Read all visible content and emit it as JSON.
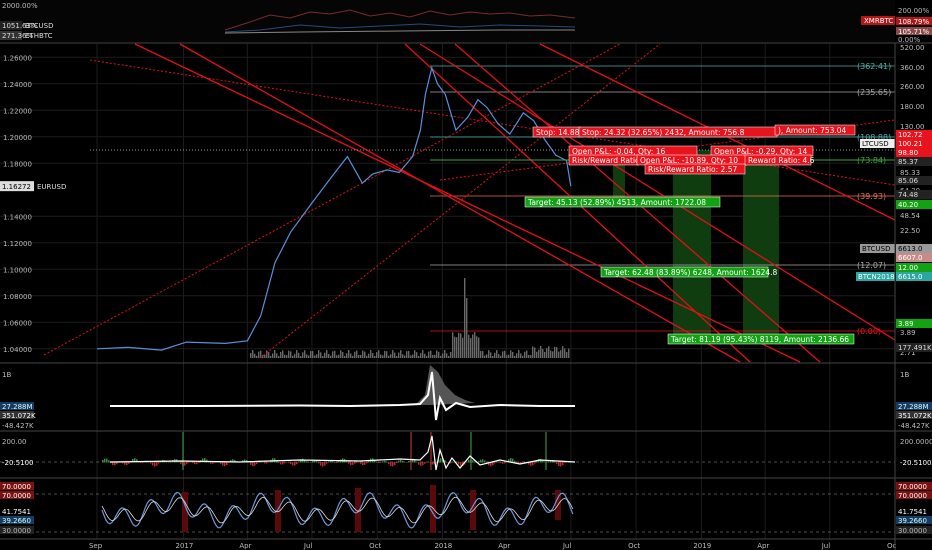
{
  "colors": {
    "background": "#000000",
    "price_line": "#5b8fd9",
    "trend_red": "#e0101a",
    "fib_line": "#9e9e9e",
    "stop_box": "#e8131c",
    "target_box": "#13a214",
    "target_zone": "#0f3d0f",
    "obv_line": "#ffffff",
    "rsi_line": "#6f97d6"
  },
  "top_strip": {
    "left_ticks": [
      "2000.00%",
      "1051.63%",
      "271.36%"
    ],
    "legend": [
      "BTCUSD",
      "ETHBTC"
    ],
    "right_label": "XMRBTC",
    "right_ticks": [
      "200.00%",
      "108.79%",
      "105.71%",
      "0.00%"
    ]
  },
  "chart_data": {
    "type": "line",
    "series": [
      {
        "name": "EURUSD",
        "x": [
          "2016-09-01",
          "2016-10-15",
          "2016-12-01",
          "2017-01-05",
          "2017-03-01",
          "2017-04-01",
          "2017-04-20",
          "2017-05-10",
          "2017-06-01",
          "2017-07-01",
          "2017-08-01",
          "2017-08-20",
          "2017-09-10",
          "2017-09-25",
          "2017-10-15",
          "2017-11-01",
          "2017-11-20",
          "2017-12-01",
          "2017-12-08",
          "2017-12-17",
          "2017-12-25",
          "2018-01-05",
          "2018-01-20",
          "2018-02-06",
          "2018-02-20",
          "2018-03-05",
          "2018-03-20",
          "2018-04-06",
          "2018-04-25",
          "2018-05-10",
          "2018-05-25",
          "2018-06-10",
          "2018-06-25",
          "2018-07-01"
        ],
        "values": [
          1.04,
          1.041,
          1.039,
          1.045,
          1.044,
          1.046,
          1.065,
          1.105,
          1.128,
          1.15,
          1.172,
          1.185,
          1.165,
          1.172,
          1.175,
          1.173,
          1.185,
          1.205,
          1.232,
          1.252,
          1.24,
          1.232,
          1.205,
          1.215,
          1.228,
          1.222,
          1.21,
          1.202,
          1.218,
          1.212,
          1.198,
          1.186,
          1.182,
          1.1627
        ]
      }
    ],
    "y_axis_ticks": [
      "1.26000",
      "1.24000",
      "1.22000",
      "1.20000",
      "1.18000",
      "1.16272",
      "1.14000",
      "1.12000",
      "1.10000",
      "1.08000",
      "1.06000",
      "1.04000"
    ],
    "ylim": [
      1.03,
      1.27
    ],
    "current_value_label": "1.16272",
    "series_tag": "EURUSD",
    "x_axis_labels": [
      "Sep",
      "2017",
      "Apr",
      "Jul",
      "Oct",
      "2018",
      "Apr",
      "Jul",
      "Oct",
      "2019",
      "Apr",
      "Jul",
      "Oc"
    ],
    "right_axis_ticks": [
      "520.00",
      "360.00",
      "260.00",
      "180.00",
      "130.00",
      "85.33",
      "64.30",
      "48.54",
      "40.20",
      "22.50",
      "16.50",
      "3.89",
      "2.71"
    ],
    "right_axis_tags": [
      {
        "text": "102.72",
        "color": "red"
      },
      {
        "text": "100.21",
        "color": "red"
      },
      {
        "text": "98.80",
        "color": "red"
      },
      {
        "text": "LTCUSD",
        "color": "white"
      },
      {
        "text": "85.37",
        "color": "dark"
      },
      {
        "text": "85.06",
        "color": "dark"
      },
      {
        "text": "74.48",
        "color": "dark"
      },
      {
        "text": "40.20",
        "color": "green"
      },
      {
        "text": "BTCUSD",
        "color": "gray"
      },
      {
        "text": "6613.0",
        "color": "gray"
      },
      {
        "text": "6607.0",
        "color": "pink"
      },
      {
        "text": "12.00",
        "color": "green"
      },
      {
        "text": "BTCN2018",
        "color": "teal"
      },
      {
        "text": "6615.0",
        "color": "teal"
      },
      {
        "text": "3.89",
        "color": "green"
      },
      {
        "text": "177.491K",
        "color": "dark"
      }
    ],
    "fib_levels": [
      "(362.41)",
      "(235.65)",
      "(108.88)",
      "(73.84)",
      "(39.93)",
      "(12.07)",
      "(0.00)"
    ],
    "annotations": {
      "stops": [
        "Stop: 14.88 (17.44",
        "Stop: 24.32 (32.65%) 2432, Amount: 756.8",
        "), Amount: 753.04"
      ],
      "pnl": [
        "Open P&L: -0.04, Qty: 16",
        "Risk/Reward Ratio: 1",
        "Open P&L: -0.29, Qty: 14",
        "Open P&L: -10.89, Qty: 10",
        "Reward Ratio: 4.6",
        "Risk/Reward Ratio: 2.57"
      ],
      "targets": [
        "Target: 45.13 (52.89%) 4513, Amount: 1722.08",
        "Target: 62.48 (83.89%) 6248, Amount: 1624.8",
        "Target: 81.19 (95.43%) 8119, Amount: 2136.66"
      ]
    }
  },
  "obv_panel": {
    "left_ticks": [
      "1B",
      "27.288M",
      "351.072K",
      "-48.427K"
    ],
    "right_ticks": [
      "1B",
      "27.288M",
      "351.072K",
      "-48.427K"
    ]
  },
  "momentum_panel": {
    "left_ticks": [
      "200.00",
      "-20.5100"
    ],
    "right_ticks": [
      "200.0000",
      "-20.5100"
    ]
  },
  "rsi_panel": {
    "left_ticks": [
      "70.0000",
      "70.0000",
      "41.7541",
      "39.2660",
      "30.0000"
    ],
    "right_ticks": [
      "70.0000",
      "70.0000",
      "41.7541",
      "39.2660",
      "30.0000"
    ]
  }
}
